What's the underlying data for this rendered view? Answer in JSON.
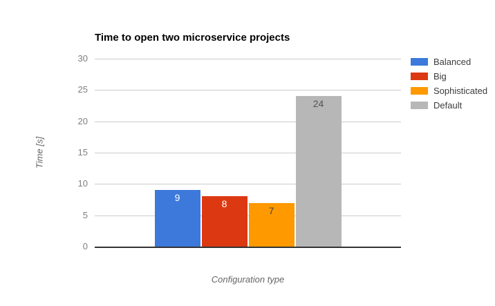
{
  "chart_data": {
    "type": "bar",
    "title": "Time to open two microservice projects",
    "xlabel": "Configuration type",
    "ylabel": "Time [s]",
    "ylim": [
      0,
      30
    ],
    "yticks": [
      0,
      5,
      10,
      15,
      20,
      25,
      30
    ],
    "grid": true,
    "legend_position": "right",
    "series": [
      {
        "name": "Balanced",
        "values": [
          9
        ],
        "color": "#3D79DB",
        "label_color": "#FFFFFF"
      },
      {
        "name": "Big",
        "values": [
          8
        ],
        "color": "#DC3912",
        "label_color": "#FFFFFF"
      },
      {
        "name": "Sophisticated",
        "values": [
          7
        ],
        "color": "#FF9900",
        "label_color": "#454545"
      },
      {
        "name": "Default",
        "values": [
          24
        ],
        "color": "#B7B7B7",
        "label_color": "#545454"
      }
    ],
    "colors": {
      "background": "#FFFFFF",
      "title": "#000000",
      "gridline": "#CCCCCC",
      "axis_line": "#333333",
      "tick_label": "#7E7E7E",
      "axis_title": "#666666",
      "legend_label": "#3B3B3B"
    }
  }
}
